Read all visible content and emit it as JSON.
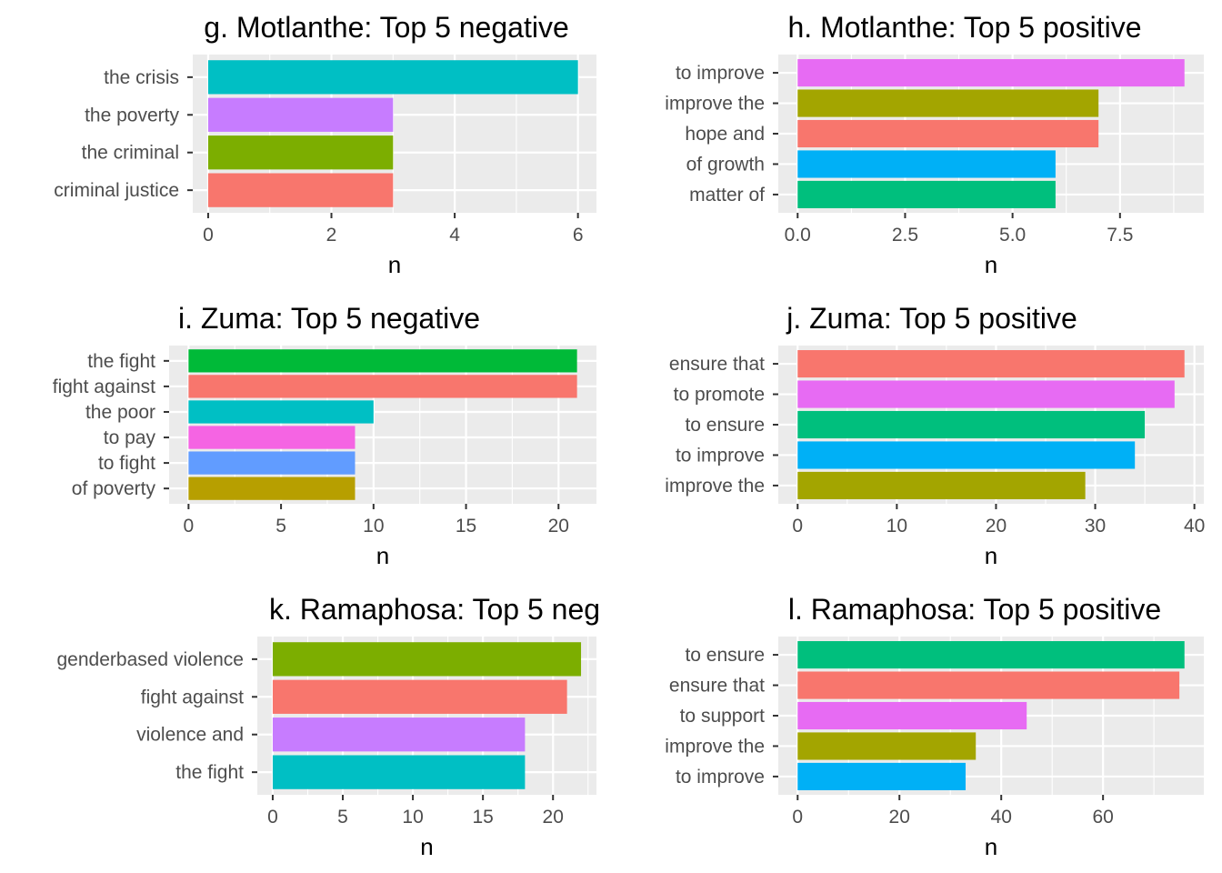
{
  "chart_data": [
    {
      "type": "bar",
      "orientation": "horizontal",
      "title": "g. Motlanthe: Top 5 negative",
      "xlabel": "n",
      "ylabel": "",
      "categories": [
        "the crisis",
        "the poverty",
        "the criminal",
        "criminal justice"
      ],
      "values": [
        6,
        3,
        3,
        3
      ],
      "colors": [
        "#00BFC4",
        "#C77CFF",
        "#7CAE00",
        "#F8766D"
      ],
      "xlim": [
        -0.25,
        6.3
      ],
      "xticks": [
        0,
        2,
        4,
        6
      ],
      "tick_labels": [
        "0",
        "2",
        "4",
        "6"
      ],
      "grid": true
    },
    {
      "type": "bar",
      "orientation": "horizontal",
      "title": "h. Motlanthe: Top 5 positive",
      "xlabel": "n",
      "ylabel": "",
      "categories": [
        "to improve",
        "improve the",
        "hope and",
        "of growth",
        "matter of"
      ],
      "values": [
        9,
        7,
        7,
        6,
        6
      ],
      "colors": [
        "#E76BF3",
        "#A3A500",
        "#F8766D",
        "#00B0F6",
        "#00BF7D"
      ],
      "xlim": [
        -0.45,
        9.45
      ],
      "xticks": [
        0,
        2.5,
        5,
        7.5
      ],
      "tick_labels": [
        "0.0",
        "2.5",
        "5.0",
        "7.5"
      ],
      "grid": true
    },
    {
      "type": "bar",
      "orientation": "horizontal",
      "title": "i. Zuma: Top 5 negative",
      "xlabel": "n",
      "ylabel": "",
      "categories": [
        "the fight",
        "fight against",
        "the poor",
        "to pay",
        "to fight",
        "of poverty"
      ],
      "values": [
        21,
        21,
        10,
        9,
        9,
        9
      ],
      "colors": [
        "#00BA38",
        "#F8766D",
        "#00BFC4",
        "#F564E3",
        "#619CFF",
        "#B79F00"
      ],
      "xlim": [
        -1.05,
        22.05
      ],
      "xticks": [
        0,
        5,
        10,
        15,
        20
      ],
      "tick_labels": [
        "0",
        "5",
        "10",
        "15",
        "20"
      ],
      "grid": true
    },
    {
      "type": "bar",
      "orientation": "horizontal",
      "title": "j. Zuma: Top 5 positive",
      "xlabel": "n",
      "ylabel": "",
      "categories": [
        "ensure that",
        "to promote",
        "to ensure",
        "to improve",
        "improve the"
      ],
      "values": [
        39,
        38,
        35,
        34,
        29
      ],
      "colors": [
        "#F8766D",
        "#E76BF3",
        "#00BF7D",
        "#00B0F6",
        "#A3A500"
      ],
      "xlim": [
        -1.95,
        40.95
      ],
      "xticks": [
        0,
        10,
        20,
        30,
        40
      ],
      "tick_labels": [
        "0",
        "10",
        "20",
        "30",
        "40"
      ],
      "grid": true
    },
    {
      "type": "bar",
      "orientation": "horizontal",
      "title": "k. Ramaphosa: Top 5 neg",
      "xlabel": "n",
      "ylabel": "",
      "categories": [
        "genderbased violence",
        "fight against",
        "violence and",
        "the fight"
      ],
      "values": [
        22,
        21,
        18,
        18
      ],
      "colors": [
        "#7CAE00",
        "#F8766D",
        "#C77CFF",
        "#00BFC4"
      ],
      "xlim": [
        -1.1,
        23.1
      ],
      "xticks": [
        0,
        5,
        10,
        15,
        20
      ],
      "tick_labels": [
        "0",
        "5",
        "10",
        "15",
        "20"
      ],
      "grid": true
    },
    {
      "type": "bar",
      "orientation": "horizontal",
      "title": "l. Ramaphosa: Top 5 positive",
      "xlabel": "n",
      "ylabel": "",
      "categories": [
        "to ensure",
        "ensure that",
        "to support",
        "improve the",
        "to improve"
      ],
      "values": [
        76,
        75,
        45,
        35,
        33
      ],
      "colors": [
        "#00BF7D",
        "#F8766D",
        "#E76BF3",
        "#A3A500",
        "#00B0F6"
      ],
      "xlim": [
        -3.8,
        79.8
      ],
      "xticks": [
        0,
        20,
        40,
        60
      ],
      "tick_labels": [
        "0",
        "20",
        "40",
        "60"
      ],
      "grid": true
    }
  ]
}
